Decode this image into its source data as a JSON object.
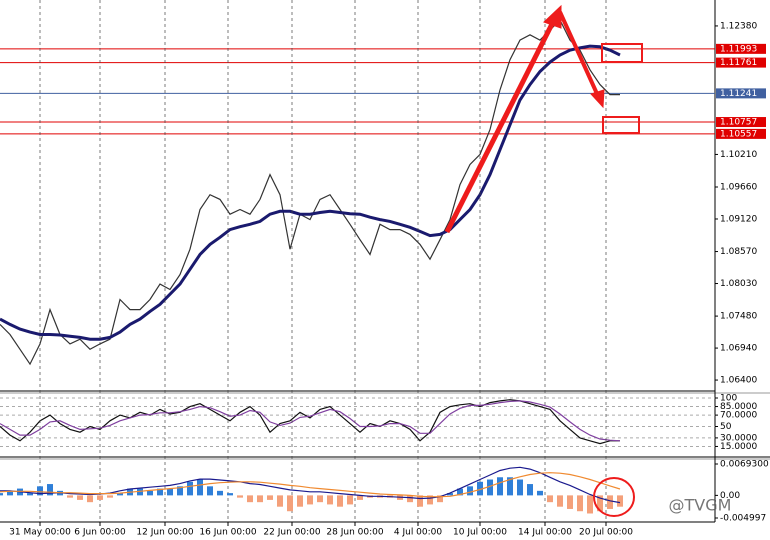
{
  "watermark": "@TVGM",
  "chart_data": [
    {
      "type": "line",
      "xlim": [
        0,
        71.5
      ],
      "ylim": [
        1.06232,
        1.12818
      ],
      "yticks": [
        {
          "value": 1.1238,
          "label": "1.12380"
        },
        {
          "value": 1.1021,
          "label": "1.10210"
        },
        {
          "value": 1.0966,
          "label": "1.09660"
        },
        {
          "value": 1.0912,
          "label": "1.09120"
        },
        {
          "value": 1.0857,
          "label": "1.08570"
        },
        {
          "value": 1.0803,
          "label": "1.08030"
        },
        {
          "value": 1.0748,
          "label": "1.07480"
        },
        {
          "value": 1.0694,
          "label": "1.06940"
        },
        {
          "value": 1.064,
          "label": "1.06400"
        }
      ],
      "levels": [
        {
          "value": 1.11993,
          "label": "1.11993",
          "color": "#e00000"
        },
        {
          "value": 1.11761,
          "label": "1.11761",
          "color": "#e00000"
        },
        {
          "value": 1.11241,
          "label": "1.11241",
          "color": "#4060a0"
        },
        {
          "value": 1.10757,
          "label": "1.10757",
          "color": "#e00000"
        },
        {
          "value": 1.10557,
          "label": "1.10557",
          "color": "#e00000"
        }
      ],
      "series": [
        {
          "color": "#333333",
          "values": [
            1.0734,
            1.0717,
            1.0692,
            1.0667,
            1.0701,
            1.0759,
            1.0717,
            1.0701,
            1.0709,
            1.0692,
            1.0701,
            1.0709,
            1.0776,
            1.0759,
            1.0759,
            1.0776,
            1.0802,
            1.0793,
            1.0818,
            1.0861,
            1.0928,
            1.0953,
            1.0945,
            1.092,
            1.0928,
            1.092,
            1.0945,
            1.0987,
            1.0953,
            1.0861,
            1.092,
            1.0911,
            1.0945,
            1.0953,
            1.0928,
            1.0903,
            1.0877,
            1.0852,
            1.0903,
            1.0894,
            1.0894,
            1.0886,
            1.0869,
            1.0844,
            1.0877,
            1.0911,
            1.097,
            1.1004,
            1.1021,
            1.1063,
            1.113,
            1.1181,
            1.1214,
            1.1223,
            1.1214,
            1.1231,
            1.1248,
            1.1214,
            1.1197,
            1.1164,
            1.1139,
            1.1122,
            1.1122
          ]
        },
        {
          "color": "#1a1a6e",
          "values": [
            1.0743,
            1.0734,
            1.0726,
            1.0721,
            1.0717,
            1.0717,
            1.0716,
            1.0714,
            1.0712,
            1.0709,
            1.0709,
            1.0712,
            1.0721,
            1.0734,
            1.0743,
            1.0756,
            1.0768,
            1.0785,
            1.0802,
            1.0827,
            1.0852,
            1.0869,
            1.0881,
            1.0894,
            1.0899,
            1.0903,
            1.0908,
            1.092,
            1.0925,
            1.0925,
            1.092,
            1.092,
            1.0923,
            1.0925,
            1.0923,
            1.0921,
            1.092,
            1.0915,
            1.0911,
            1.0908,
            1.0903,
            1.0898,
            1.0891,
            1.0884,
            1.0886,
            1.0894,
            1.0911,
            1.0928,
            1.0953,
            1.0987,
            1.1029,
            1.1071,
            1.1113,
            1.1139,
            1.1161,
            1.1177,
            1.1189,
            1.1197,
            1.1201,
            1.1204,
            1.1203,
            1.1197,
            1.1189
          ]
        }
      ]
    },
    {
      "type": "line",
      "xlim": [
        0,
        71.5
      ],
      "ylim": [
        0,
        100
      ],
      "yticks": [
        100,
        {
          "value": 85,
          "label": "85.0000"
        },
        {
          "value": 70,
          "label": "70.0000"
        },
        50,
        {
          "value": 30,
          "label": "30.0000"
        },
        {
          "value": 15,
          "label": "15.0000"
        }
      ],
      "series": [
        {
          "color": "#111111",
          "values": [
            50,
            35,
            25,
            40,
            60,
            70,
            55,
            45,
            40,
            50,
            45,
            60,
            70,
            65,
            75,
            70,
            80,
            72,
            75,
            85,
            90,
            80,
            70,
            60,
            75,
            85,
            70,
            40,
            55,
            60,
            75,
            65,
            80,
            85,
            70,
            55,
            40,
            55,
            50,
            60,
            55,
            45,
            25,
            40,
            75,
            85,
            88,
            90,
            85,
            92,
            95,
            97,
            95,
            90,
            85,
            80,
            60,
            45,
            30,
            25,
            20,
            25,
            25
          ]
        },
        {
          "color": "#8040a0",
          "values": [
            55,
            45,
            35,
            35,
            45,
            58,
            60,
            52,
            45,
            46,
            47,
            52,
            60,
            65,
            70,
            71,
            74,
            74,
            76,
            80,
            85,
            83,
            76,
            68,
            70,
            78,
            75,
            58,
            52,
            56,
            66,
            68,
            74,
            80,
            76,
            64,
            50,
            50,
            51,
            55,
            55,
            50,
            38,
            38,
            55,
            72,
            82,
            87,
            87,
            89,
            92,
            94,
            95,
            93,
            89,
            84,
            72,
            58,
            45,
            35,
            28,
            26,
            25
          ]
        }
      ]
    },
    {
      "type": "combo",
      "xlim": [
        0,
        71.5
      ],
      "ylim": [
        -0.004997,
        0.00693
      ],
      "yticks": [
        {
          "value": 0.00693,
          "label": "0.0069300"
        },
        {
          "value": 0,
          "label": "0.00"
        },
        -0.004997
      ],
      "xticks": [
        {
          "value": 4,
          "label": "31 May 00:00"
        },
        {
          "value": 10,
          "label": "6 Jun 00:00"
        },
        {
          "value": 16.5,
          "label": "12 Jun 00:00"
        },
        {
          "value": 22.8,
          "label": "16 Jun 00:00"
        },
        {
          "value": 29.2,
          "label": "22 Jun 00:00"
        },
        {
          "value": 35.5,
          "label": "28 Jun 00:00"
        },
        {
          "value": 41.8,
          "label": "4 Jul 00:00"
        },
        {
          "value": 48,
          "label": "10 Jul 00:00"
        },
        {
          "value": 54.5,
          "label": "14 Jul 00:00"
        },
        {
          "value": 60.6,
          "label": "20 Jul 00:00"
        }
      ],
      "grid": true,
      "colors": {
        "positive": "#2f7fd8",
        "negative": "#f4a07a"
      },
      "values": [
        0.0005,
        0.001,
        0.0015,
        0.0005,
        0.002,
        0.0025,
        0.001,
        -0.0005,
        -0.001,
        -0.0015,
        -0.001,
        -0.0005,
        0.0005,
        0.0015,
        0.0015,
        0.001,
        0.0015,
        0.0015,
        0.002,
        0.003,
        0.0035,
        0.002,
        0.001,
        0.0005,
        -0.0005,
        -0.0015,
        -0.0015,
        -0.001,
        -0.0025,
        -0.0035,
        -0.0025,
        -0.002,
        -0.0015,
        -0.002,
        -0.0025,
        -0.002,
        -0.001,
        -0.0005,
        -0.0005,
        -0.0005,
        -0.001,
        -0.0015,
        -0.0025,
        -0.002,
        -0.0015,
        0.0005,
        0.0015,
        0.002,
        0.003,
        0.0035,
        0.004,
        0.004,
        0.0035,
        0.0025,
        0.001,
        -0.0015,
        -0.0025,
        -0.003,
        -0.0035,
        -0.004,
        -0.0035,
        -0.003,
        -0.0025
      ],
      "series": [
        {
          "color": "#1a1a8e",
          "values": [
            0.001,
            0.001,
            0.0008,
            0.0006,
            0.0004,
            0.0005,
            0.0006,
            0.0004,
            0.0003,
            0.0002,
            0.0003,
            0.0005,
            0.001,
            0.0014,
            0.0016,
            0.0018,
            0.002,
            0.0022,
            0.0026,
            0.0032,
            0.0036,
            0.0036,
            0.0034,
            0.0032,
            0.003,
            0.0026,
            0.0024,
            0.002,
            0.0016,
            0.0012,
            0.001,
            0.0008,
            0.0008,
            0.0006,
            0.0004,
            0.0002,
            0,
            -0.0002,
            -0.0002,
            -0.0003,
            -0.0004,
            -0.0005,
            -0.0007,
            -0.0006,
            -0.0003,
            0.0005,
            0.0015,
            0.0025,
            0.0035,
            0.0045,
            0.0055,
            0.006,
            0.0062,
            0.0058,
            0.005,
            0.004,
            0.003,
            0.0022,
            0.0012,
            0.0002,
            -0.0006,
            -0.0012,
            -0.0016
          ]
        },
        {
          "color": "#f08a30",
          "values": [
            0.0008,
            0.0009,
            0.0009,
            0.0009,
            0.0008,
            0.0007,
            0.0006,
            0.0006,
            0.0005,
            0.0004,
            0.0004,
            0.0004,
            0.0005,
            0.0007,
            0.0009,
            0.0011,
            0.0013,
            0.0015,
            0.0017,
            0.002,
            0.0023,
            0.0026,
            0.0028,
            0.0029,
            0.003,
            0.003,
            0.0029,
            0.0027,
            0.0025,
            0.0022,
            0.002,
            0.0017,
            0.0015,
            0.0013,
            0.0011,
            0.0009,
            0.0007,
            0.0005,
            0.0003,
            0.0002,
            0.0001,
            0,
            -0.0002,
            -0.0003,
            -0.0003,
            -0.0002,
            0.0002,
            0.0007,
            0.0013,
            0.002,
            0.0028,
            0.0035,
            0.0041,
            0.0046,
            0.0049,
            0.005,
            0.0049,
            0.0046,
            0.0041,
            0.0035,
            0.0028,
            0.0021,
            0.0014
          ]
        }
      ]
    }
  ]
}
